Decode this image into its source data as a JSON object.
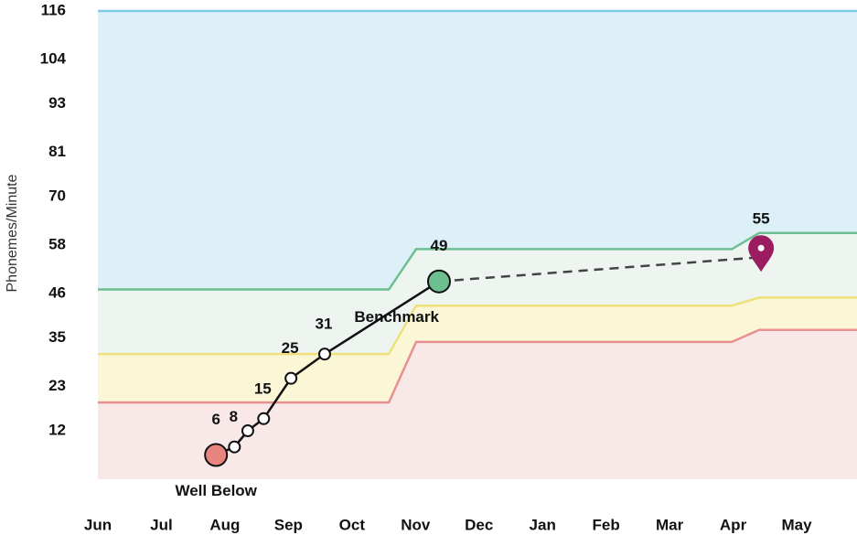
{
  "chart_data": {
    "type": "line",
    "y_label": "Phonemes/Minute",
    "xlim": [
      0,
      11.95
    ],
    "xticks": [
      {
        "value": 0,
        "label": "Jun"
      },
      {
        "value": 1,
        "label": "Jul"
      },
      {
        "value": 2,
        "label": "Aug"
      },
      {
        "value": 3,
        "label": "Sep"
      },
      {
        "value": 4,
        "label": "Oct"
      },
      {
        "value": 5,
        "label": "Nov"
      },
      {
        "value": 6,
        "label": "Dec"
      },
      {
        "value": 7,
        "label": "Jan"
      },
      {
        "value": 8,
        "label": "Feb"
      },
      {
        "value": 9,
        "label": "Mar"
      },
      {
        "value": 10,
        "label": "Apr"
      },
      {
        "value": 11,
        "label": "May"
      }
    ],
    "ylim": [
      0,
      116
    ],
    "yticks": [
      12,
      23,
      35,
      46,
      58,
      70,
      81,
      93,
      104,
      116
    ],
    "thresholds": {
      "x": [
        0,
        4.58,
        5.01,
        9.98,
        10.41,
        11.95
      ],
      "series": [
        {
          "color": "#7ec8e8",
          "fill": "#ddf0f8",
          "values": [
            116,
            116,
            116,
            116,
            116,
            116
          ]
        },
        {
          "color": "#6dbf8f",
          "fill": "#eef5f0",
          "values": [
            47,
            47,
            57,
            57,
            61,
            61
          ]
        },
        {
          "color": "#f0e07a",
          "fill": "#faf6d6",
          "values": [
            31,
            31,
            43,
            43,
            45,
            45
          ]
        },
        {
          "color": "#e89090",
          "fill": "#f8e8e8",
          "values": [
            19,
            19,
            34,
            34,
            37,
            37
          ]
        }
      ]
    },
    "scores": {
      "x": [
        1.86,
        2.15,
        2.36,
        2.61,
        3.04,
        3.57,
        5.37
      ],
      "values": [
        6,
        8,
        12,
        15,
        25,
        31,
        49
      ],
      "value_labels": [
        "6",
        "8",
        null,
        "15",
        "25",
        "31",
        "49"
      ],
      "status_labels": [
        "Well Below",
        null,
        null,
        null,
        null,
        null,
        "Benchmark"
      ],
      "marker_colors": [
        "#e8857f",
        null,
        null,
        null,
        null,
        null,
        "#6dbf8f"
      ],
      "color": "#111111"
    },
    "projection": {
      "x": [
        5.37,
        10.44
      ],
      "values": [
        49,
        55
      ],
      "value_labels": [
        null,
        "55"
      ],
      "color": "#444444",
      "goal_color": "#9b1c5f"
    }
  }
}
